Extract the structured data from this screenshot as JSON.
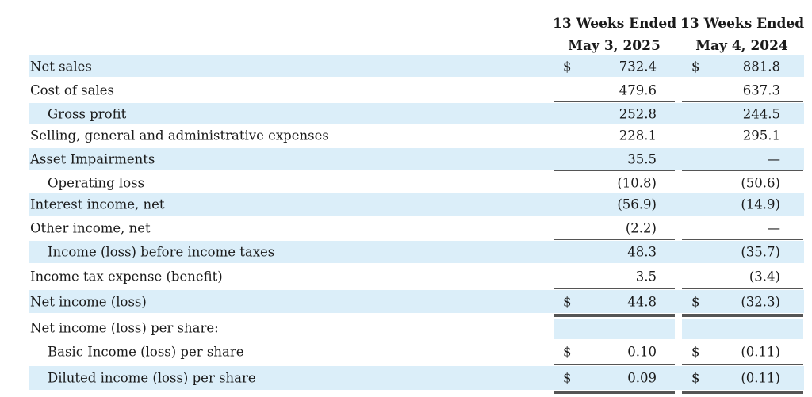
{
  "header": {
    "col1_line1": "13 Weeks Ended",
    "col1_line2": "May 3, 2025",
    "col2_line1": "13 Weeks Ended",
    "col2_line2": "May 4, 2024"
  },
  "rows": [
    {
      "label": "Net sales",
      "cur1": "$",
      "v1": "732.4",
      "cur2": "$",
      "v2": "881.8"
    },
    {
      "label": "Cost of sales",
      "cur1": "",
      "v1": "479.6",
      "cur2": "",
      "v2": "637.3"
    },
    {
      "label": "Gross profit",
      "cur1": "",
      "v1": "252.8",
      "cur2": "",
      "v2": "244.5"
    },
    {
      "label": "Selling, general and administrative expenses",
      "cur1": "",
      "v1": "228.1",
      "cur2": "",
      "v2": "295.1"
    },
    {
      "label": "Asset Impairments",
      "cur1": "",
      "v1": "35.5",
      "cur2": "",
      "v2": "—"
    },
    {
      "label": "Operating loss",
      "cur1": "",
      "v1": "(10.8)",
      "cur2": "",
      "v2": "(50.6)"
    },
    {
      "label": "Interest income, net",
      "cur1": "",
      "v1": "(56.9)",
      "cur2": "",
      "v2": "(14.9)"
    },
    {
      "label": "Other income, net",
      "cur1": "",
      "v1": "(2.2)",
      "cur2": "",
      "v2": "—"
    },
    {
      "label": "Income (loss) before income taxes",
      "cur1": "",
      "v1": "48.3",
      "cur2": "",
      "v2": "(35.7)"
    },
    {
      "label": "Income tax expense (benefit)",
      "cur1": "",
      "v1": "3.5",
      "cur2": "",
      "v2": "(3.4)"
    },
    {
      "label": "Net income (loss)",
      "cur1": "$",
      "v1": "44.8",
      "cur2": "$",
      "v2": "(32.3)"
    },
    {
      "label": "Net income (loss) per share:",
      "cur1": "",
      "v1": "",
      "cur2": "",
      "v2": ""
    },
    {
      "label": "Basic Income (loss) per share",
      "cur1": "$",
      "v1": "0.10",
      "cur2": "$",
      "v2": "(0.11)"
    },
    {
      "label": "Diluted income (loss) per share",
      "cur1": "$",
      "v1": "0.09",
      "cur2": "$",
      "v2": "(0.11)"
    }
  ]
}
